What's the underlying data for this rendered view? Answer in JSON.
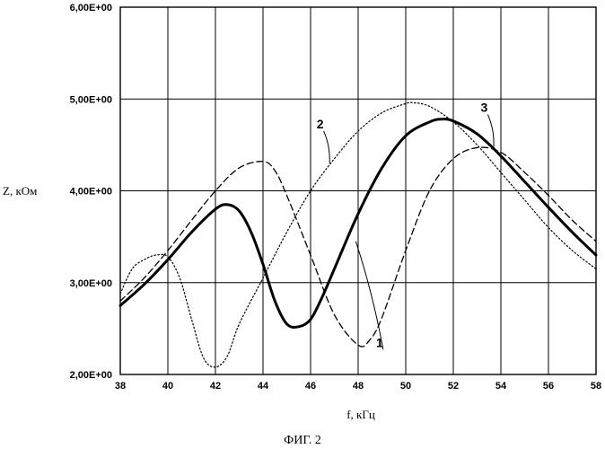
{
  "chart_data": {
    "type": "line",
    "xlabel": "f, кГц",
    "ylabel": "Z, кОм",
    "xlim": [
      38,
      58
    ],
    "ylim": [
      2.0,
      6.0
    ],
    "x_ticks": [
      "38",
      "40",
      "42",
      "44",
      "46",
      "48",
      "50",
      "52",
      "54",
      "56",
      "58"
    ],
    "y_ticks": [
      "2,00E+00",
      "3,00E+00",
      "4,00E+00",
      "5,00E+00",
      "6,00E+00"
    ],
    "grid": true,
    "caption": "ФИГ. 2",
    "series": [
      {
        "name": "1",
        "style": "dashed",
        "x": [
          38,
          39,
          40,
          41,
          42,
          43,
          44,
          44.5,
          45,
          46,
          47,
          48,
          48.5,
          49,
          50,
          51,
          52,
          53,
          54,
          55,
          56,
          57,
          58
        ],
        "y": [
          2.8,
          3.05,
          3.35,
          3.68,
          4.0,
          4.25,
          4.32,
          4.22,
          3.95,
          3.3,
          2.65,
          2.32,
          2.38,
          2.62,
          3.35,
          4.0,
          4.35,
          4.47,
          4.42,
          4.2,
          3.95,
          3.68,
          3.45
        ]
      },
      {
        "name": "2",
        "style": "dotted",
        "x": [
          38,
          38.5,
          39,
          39.5,
          40,
          40.5,
          41,
          41.5,
          42,
          42.5,
          43,
          44,
          45,
          46,
          47,
          48,
          49,
          50,
          50.3,
          51,
          52,
          53,
          54,
          55,
          56,
          57,
          58
        ],
        "y": [
          2.88,
          3.15,
          3.25,
          3.3,
          3.28,
          3.05,
          2.6,
          2.18,
          2.08,
          2.2,
          2.55,
          3.05,
          3.55,
          4.0,
          4.35,
          4.65,
          4.85,
          4.95,
          4.96,
          4.92,
          4.75,
          4.5,
          4.2,
          3.9,
          3.6,
          3.35,
          3.15
        ]
      },
      {
        "name": "3",
        "style": "solid",
        "x": [
          38,
          39,
          40,
          41,
          42,
          42.5,
          43,
          43.5,
          44,
          44.5,
          45,
          45.5,
          46,
          46.5,
          47,
          48,
          49,
          50,
          51,
          51.5,
          52,
          53,
          54,
          55,
          56,
          57,
          58
        ],
        "y": [
          2.75,
          2.98,
          3.25,
          3.55,
          3.8,
          3.85,
          3.78,
          3.55,
          3.2,
          2.8,
          2.55,
          2.52,
          2.6,
          2.85,
          3.15,
          3.75,
          4.25,
          4.6,
          4.75,
          4.78,
          4.76,
          4.62,
          4.38,
          4.1,
          3.82,
          3.55,
          3.3
        ]
      }
    ]
  }
}
